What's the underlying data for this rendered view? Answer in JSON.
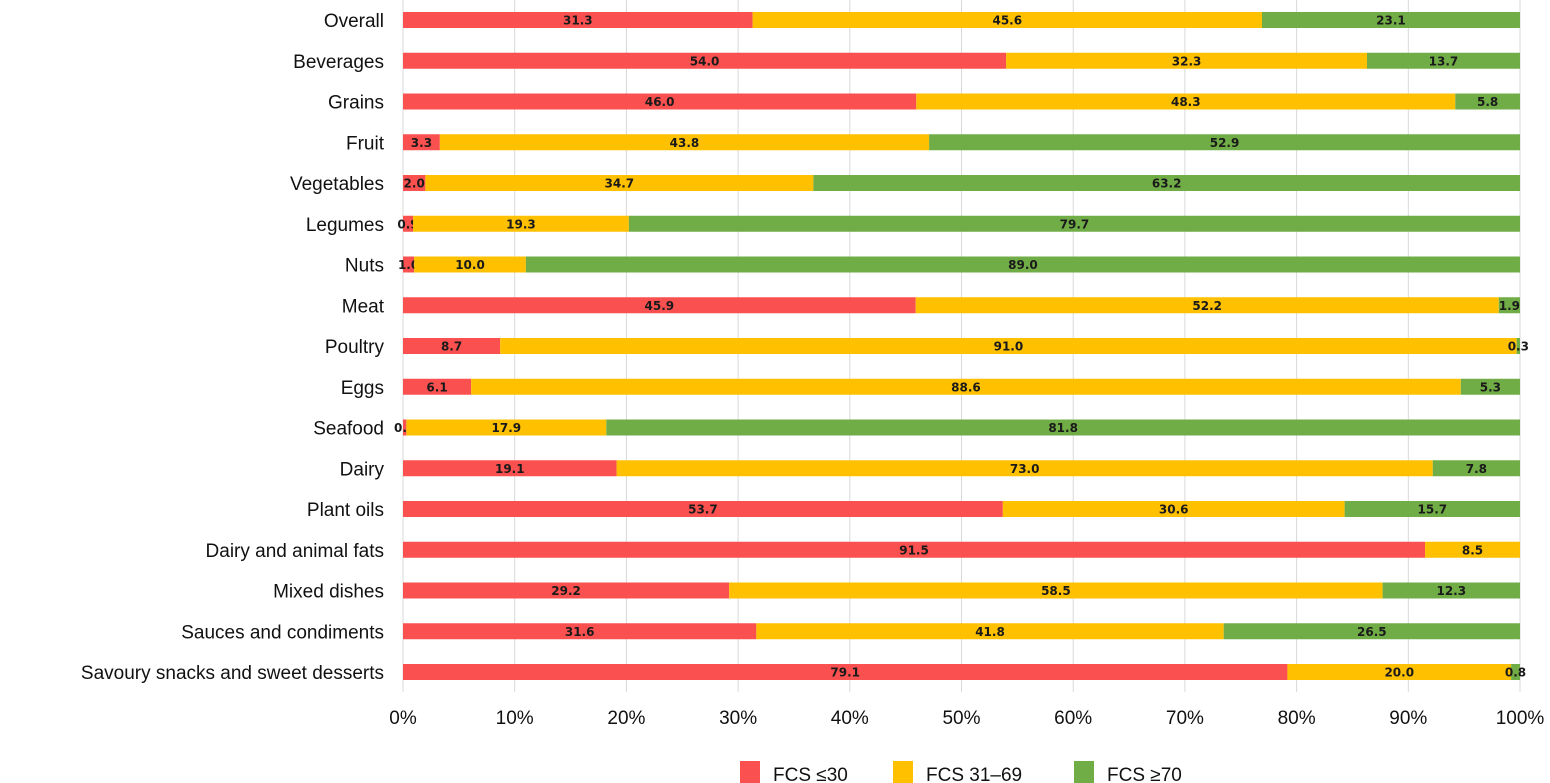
{
  "chart_data": {
    "type": "bar",
    "orientation": "horizontal",
    "stacked": "percent",
    "categories": [
      "Overall",
      "Beverages",
      "Grains",
      "Fruit",
      "Vegetables",
      "Legumes",
      "Nuts",
      "Meat",
      "Poultry",
      "Eggs",
      "Seafood",
      "Dairy",
      "Plant oils",
      "Dairy and animal fats",
      "Mixed dishes",
      "Sauces and condiments",
      "Savoury snacks and sweet desserts"
    ],
    "series": [
      {
        "name": "FCS ≤30",
        "color": "#fb5050",
        "values": [
          31.3,
          54.0,
          46.0,
          3.3,
          2.0,
          0.9,
          1.0,
          45.9,
          8.7,
          6.1,
          0.3,
          19.1,
          53.7,
          91.5,
          29.2,
          31.6,
          79.1
        ]
      },
      {
        "name": "FCS 31–69",
        "color": "#ffc000",
        "values": [
          45.6,
          32.3,
          48.3,
          43.8,
          34.7,
          19.3,
          10.0,
          52.2,
          91.0,
          88.6,
          17.9,
          73.0,
          30.6,
          8.5,
          58.5,
          41.8,
          20.0
        ]
      },
      {
        "name": "FCS ≥70",
        "color": "#70ad47",
        "values": [
          23.1,
          13.7,
          5.8,
          52.9,
          63.2,
          79.7,
          89.0,
          1.9,
          0.3,
          5.3,
          81.8,
          7.8,
          15.7,
          null,
          12.3,
          26.5,
          0.8
        ]
      }
    ],
    "x_ticks": [
      "0%",
      "10%",
      "20%",
      "30%",
      "40%",
      "50%",
      "60%",
      "70%",
      "80%",
      "90%",
      "100%"
    ],
    "xlim": [
      0,
      100
    ],
    "grid": "vertical",
    "legend_position": "bottom"
  }
}
